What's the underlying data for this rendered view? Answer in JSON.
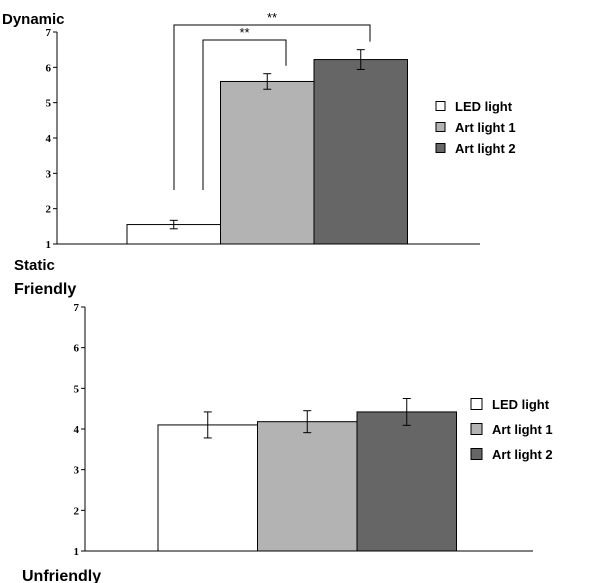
{
  "chart_data": [
    {
      "type": "bar",
      "top_label": "Dynamic",
      "bottom_label": "Static",
      "ylim": [
        1,
        7
      ],
      "yticks": [
        "1",
        "2",
        "3",
        "4",
        "5",
        "6",
        "7"
      ],
      "series": [
        {
          "name": "LED light",
          "value": 1.55,
          "error": 0.12,
          "color": "#ffffff"
        },
        {
          "name": "Art light 1",
          "value": 5.6,
          "error": 0.22,
          "color": "#b3b3b3"
        },
        {
          "name": "Art light 2",
          "value": 6.22,
          "error": 0.28,
          "color": "#666666"
        }
      ],
      "significance": [
        {
          "label": "**",
          "from": "LED light",
          "to": "Art light 1"
        },
        {
          "label": "**",
          "from": "LED light",
          "to": "Art light 2"
        }
      ]
    },
    {
      "type": "bar",
      "top_label": "Friendly",
      "bottom_label": "Unfriendly",
      "ylim": [
        1,
        7
      ],
      "yticks": [
        "1",
        "2",
        "3",
        "4",
        "5",
        "6",
        "7"
      ],
      "series": [
        {
          "name": "LED light",
          "value": 4.1,
          "error": 0.32,
          "color": "#ffffff"
        },
        {
          "name": "Art light 1",
          "value": 4.18,
          "error": 0.27,
          "color": "#b3b3b3"
        },
        {
          "name": "Art light 2",
          "value": 4.42,
          "error": 0.33,
          "color": "#666666"
        }
      ]
    }
  ]
}
